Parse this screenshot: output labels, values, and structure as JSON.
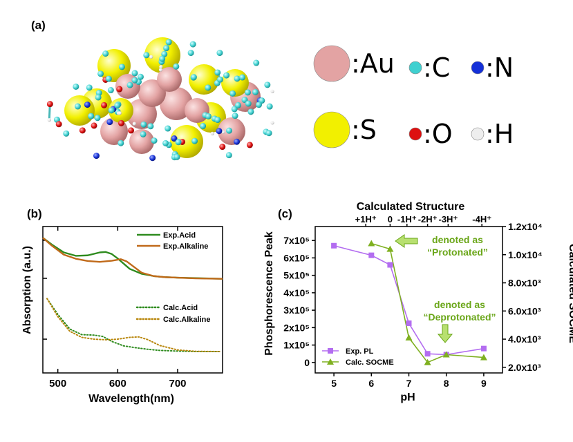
{
  "panels": {
    "a": "(a)",
    "b": "(b)",
    "c": "(c)"
  },
  "structure_legend": [
    {
      "label": ":Au",
      "color": "#e3a3a3"
    },
    {
      "label": ":C",
      "color": "#3fd0d0"
    },
    {
      "label": ":N",
      "color": "#1530d8"
    },
    {
      "label": ":S",
      "color": "#f2f000"
    },
    {
      "label": ":O",
      "color": "#dd1010"
    },
    {
      "label": ":H",
      "color": "#eeeeee"
    }
  ],
  "chart_data": [
    {
      "type": "line",
      "panel": "(b)",
      "xlabel": "Wavelength(nm)",
      "ylabel": "Absorption (a.u.)",
      "xlim": [
        475,
        775
      ],
      "xticks": [
        "500",
        "600",
        "700"
      ],
      "series": [
        {
          "name": "Exp.Acid",
          "style": "solid",
          "color": "#2e8b1e",
          "x": [
            475,
            490,
            510,
            530,
            550,
            570,
            580,
            590,
            600,
            610,
            620,
            640,
            660,
            680,
            700,
            730,
            775
          ],
          "y": [
            0.95,
            0.92,
            0.885,
            0.87,
            0.872,
            0.885,
            0.887,
            0.878,
            0.858,
            0.835,
            0.812,
            0.79,
            0.78,
            0.775,
            0.773,
            0.771,
            0.768
          ]
        },
        {
          "name": "Exp.Alkaline",
          "style": "solid",
          "color": "#c06a1a",
          "x": [
            475,
            490,
            510,
            530,
            550,
            570,
            590,
            605,
            615,
            625,
            640,
            660,
            680,
            700,
            730,
            775
          ],
          "y": [
            0.95,
            0.915,
            0.875,
            0.857,
            0.847,
            0.843,
            0.848,
            0.855,
            0.845,
            0.825,
            0.795,
            0.78,
            0.775,
            0.773,
            0.77,
            0.768
          ]
        },
        {
          "name": "Calc.Acid",
          "style": "dotted",
          "color": "#2e8b1e",
          "x": [
            482,
            500,
            520,
            540,
            560,
            575,
            590,
            610,
            630,
            650,
            670,
            700,
            730,
            770
          ],
          "y": [
            0.68,
            0.61,
            0.545,
            0.52,
            0.518,
            0.512,
            0.49,
            0.47,
            0.462,
            0.455,
            0.45,
            0.447,
            0.445,
            0.445
          ]
        },
        {
          "name": "Calc.Alkaline",
          "style": "dotted",
          "color": "#b8860b",
          "x": [
            482,
            500,
            520,
            540,
            560,
            580,
            600,
            620,
            635,
            650,
            670,
            700,
            730,
            770
          ],
          "y": [
            0.68,
            0.6,
            0.535,
            0.508,
            0.5,
            0.497,
            0.5,
            0.508,
            0.51,
            0.498,
            0.472,
            0.452,
            0.446,
            0.445
          ]
        }
      ]
    },
    {
      "type": "line",
      "panel": "(c)",
      "title": "Calculated Structure",
      "xlabel": "pH",
      "ylabel": "Phosphorescence Peak",
      "ylabel_right": "Calculated SOCME",
      "xlim": [
        4.5,
        9.5
      ],
      "ylim": [
        -60000,
        780000
      ],
      "ylim_right": [
        1600,
        12000
      ],
      "xticks": [
        "5",
        "6",
        "7",
        "8",
        "9"
      ],
      "yticks": [
        "0",
        "1x10⁵",
        "2x10⁵",
        "3x10⁵",
        "4x10⁵",
        "5x10⁵",
        "6x10⁵",
        "7x10⁵"
      ],
      "yticks_right": [
        "2.0x10³",
        "4.0x10³",
        "6.0x10³",
        "8.0x10³",
        "1.0x10⁴",
        "1.2x10⁴"
      ],
      "top_ticks": [
        {
          "label": "+1H⁺",
          "ph": 5.85
        },
        {
          "label": "0",
          "ph": 6.5
        },
        {
          "label": "-1H⁺",
          "ph": 6.95
        },
        {
          "label": "-2H⁺",
          "ph": 7.5
        },
        {
          "label": "-3H⁺",
          "ph": 8.05
        },
        {
          "label": "-4H⁺",
          "ph": 8.95
        }
      ],
      "series": [
        {
          "name": "Exp. PL",
          "axis": "left",
          "marker": "square",
          "color": "#b36df0",
          "x": [
            5,
            6,
            6.5,
            7,
            7.5,
            8,
            9
          ],
          "y": [
            670000,
            615000,
            560000,
            225000,
            50000,
            45000,
            80000
          ]
        },
        {
          "name": "Calc. SOCME",
          "axis": "right",
          "marker": "triangle",
          "color": "#7fb020",
          "x": [
            6,
            6.5,
            7,
            7.5,
            8,
            9
          ],
          "y": [
            10800,
            10400,
            4100,
            2350,
            2900,
            2700
          ]
        }
      ],
      "annotations": [
        {
          "line1": "denoted as",
          "line2": "“Protonated”",
          "color": "#6aa618"
        },
        {
          "line1": "denoted as",
          "line2": "“Deprotonated”",
          "color": "#6aa618"
        }
      ]
    }
  ]
}
